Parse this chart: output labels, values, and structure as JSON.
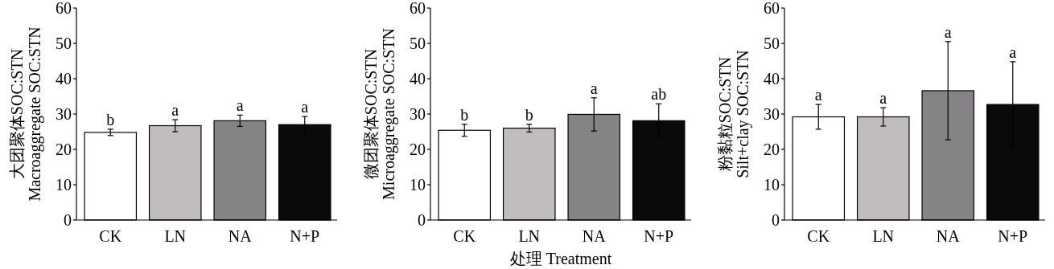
{
  "chart_data": [
    {
      "type": "bar",
      "ylabel": "大团聚体SOC:STN\nMacroaggregate SOC:STN",
      "categories": [
        "CK",
        "LN",
        "NA",
        "N+P"
      ],
      "values": [
        24.8,
        26.7,
        28.1,
        27.0
      ],
      "errors": [
        0.9,
        1.7,
        1.6,
        2.3
      ],
      "colors": [
        "#ffffff",
        "#c0bcbf",
        "#858385",
        "#0a0a0a"
      ],
      "ylim": [
        0,
        60
      ],
      "yticks": [
        0,
        10,
        20,
        30,
        40,
        50,
        60
      ],
      "grid": false,
      "annotations": [
        {
          "text": "b",
          "x": "CK",
          "y": 25.7
        },
        {
          "text": "a",
          "x": "LN",
          "y": 28.4
        },
        {
          "text": "a",
          "x": "NA",
          "y": 29.7
        },
        {
          "text": "a",
          "x": "N+P",
          "y": 29.3
        }
      ]
    },
    {
      "type": "bar",
      "ylabel": "微团聚体SOC:STN\nMicroaggregate SOC:STN",
      "xlabel": "处理 Treatment",
      "categories": [
        "CK",
        "LN",
        "NA",
        "N+P"
      ],
      "values": [
        25.4,
        26.0,
        29.9,
        28.1
      ],
      "errors": [
        1.7,
        1.1,
        4.7,
        4.8
      ],
      "colors": [
        "#ffffff",
        "#c0bcbf",
        "#858385",
        "#0a0a0a"
      ],
      "ylim": [
        0,
        60
      ],
      "yticks": [
        0,
        10,
        20,
        30,
        40,
        50,
        60
      ],
      "grid": false,
      "annotations": [
        {
          "text": "b",
          "x": "CK",
          "y": 27.1
        },
        {
          "text": "b",
          "x": "LN",
          "y": 27.1
        },
        {
          "text": "a",
          "x": "NA",
          "y": 34.6
        },
        {
          "text": "ab",
          "x": "N+P",
          "y": 32.9
        }
      ]
    },
    {
      "type": "bar",
      "ylabel": "粉黏粒SOC:STN\nSilt+clay SOC:STN",
      "categories": [
        "CK",
        "LN",
        "NA",
        "N+P"
      ],
      "values": [
        29.2,
        29.2,
        36.6,
        32.7
      ],
      "errors": [
        3.5,
        2.6,
        13.9,
        12.1
      ],
      "colors": [
        "#ffffff",
        "#c0bcbf",
        "#858385",
        "#0a0a0a"
      ],
      "ylim": [
        0,
        60
      ],
      "yticks": [
        0,
        10,
        20,
        30,
        40,
        50,
        60
      ],
      "grid": false,
      "annotations": [
        {
          "text": "a",
          "x": "CK",
          "y": 32.7
        },
        {
          "text": "a",
          "x": "LN",
          "y": 31.8
        },
        {
          "text": "a",
          "x": "NA",
          "y": 50.5
        },
        {
          "text": "a",
          "x": "N+P",
          "y": 44.8
        }
      ]
    }
  ]
}
